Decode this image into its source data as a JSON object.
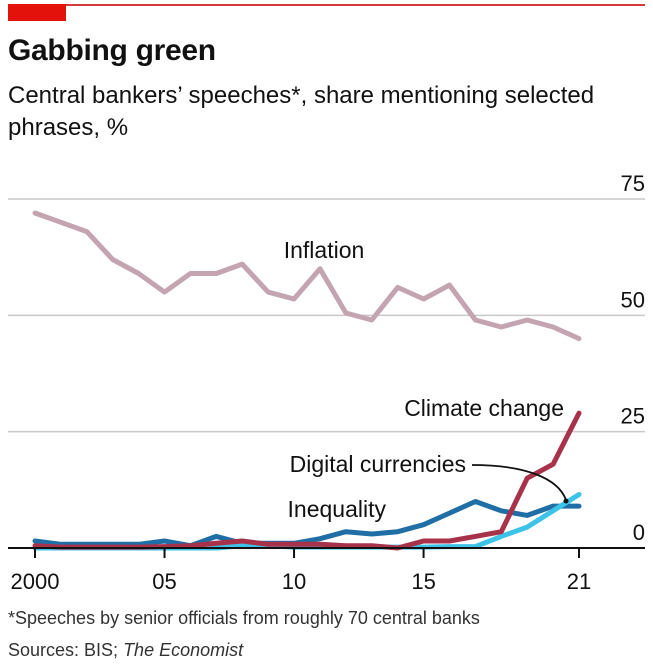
{
  "header": {
    "title": "Gabbing green",
    "subtitle": "Central bankers’ speeches*, share mentioning selected phrases, %"
  },
  "footer": {
    "footnote": "*Speeches by senior officials from roughly 70 central banks",
    "source_prefix": "Sources: BIS; ",
    "source_publication": "The Economist"
  },
  "colors": {
    "brand_red": "#e3120b",
    "inflation": "#c4a4b0",
    "climate_change": "#a8324a",
    "digital_currencies": "#3ec3e8",
    "inequality": "#1f6ea5",
    "gridline": "#c9c9c9",
    "axis": "#111111"
  },
  "chart_data": {
    "type": "line",
    "x": [
      2000,
      2001,
      2002,
      2003,
      2004,
      2005,
      2006,
      2007,
      2008,
      2009,
      2010,
      2011,
      2012,
      2013,
      2014,
      2015,
      2016,
      2017,
      2018,
      2019,
      2020,
      2021
    ],
    "x_tick_values": [
      2000,
      2005,
      2010,
      2015,
      2021
    ],
    "x_tick_labels": [
      "2000",
      "05",
      "10",
      "15",
      "21"
    ],
    "ylim": [
      0,
      75
    ],
    "y_ticks": [
      0,
      25,
      50,
      75
    ],
    "grid": true,
    "series": [
      {
        "name": "Inflation",
        "color_key": "inflation",
        "values": [
          72,
          70,
          68,
          62,
          59,
          55,
          59,
          59,
          61,
          55,
          53.5,
          60,
          50.5,
          49,
          56,
          53.5,
          56.5,
          49,
          47.5,
          49,
          47.5,
          45
        ]
      },
      {
        "name": "Climate change",
        "color_key": "climate_change",
        "values": [
          0.5,
          0.2,
          0.2,
          0.2,
          0.2,
          0.3,
          0.5,
          1,
          1.5,
          0.8,
          0.8,
          0.8,
          0.5,
          0.5,
          0,
          1.5,
          1.5,
          2.5,
          3.5,
          15,
          18,
          29
        ]
      },
      {
        "name": "Digital currencies",
        "color_key": "digital_currencies",
        "values": [
          0,
          0,
          0,
          0,
          0,
          0,
          0,
          0,
          0.5,
          0.5,
          0.2,
          0.2,
          0.2,
          0.2,
          0.2,
          0.2,
          0.3,
          0.3,
          2.5,
          4.5,
          8,
          11.5
        ]
      },
      {
        "name": "Inequality",
        "color_key": "inequality",
        "values": [
          1.5,
          0.8,
          0.8,
          0.8,
          0.8,
          1.5,
          0.5,
          2.5,
          1,
          1,
          1,
          2,
          3.5,
          3,
          3.5,
          5,
          7.5,
          10,
          8,
          7,
          9,
          9
        ]
      }
    ]
  }
}
